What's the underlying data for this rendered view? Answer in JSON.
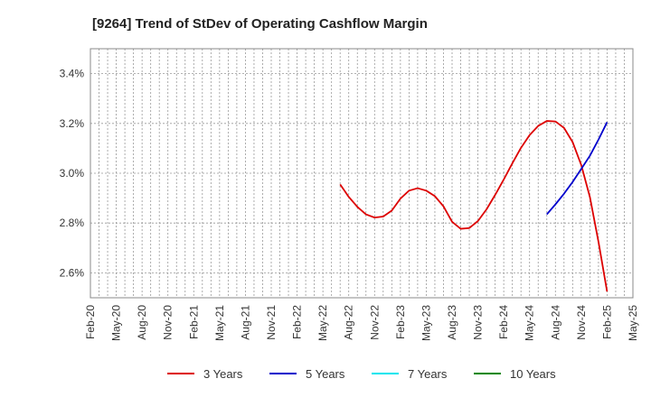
{
  "chart_data": {
    "type": "line",
    "title": "[9264]  Trend of StDev of Operating Cashflow Margin",
    "xlabel": "",
    "ylabel": "",
    "ylim": [
      2.5,
      3.5
    ],
    "yticks": [
      2.6,
      2.8,
      3.0,
      3.2,
      3.4
    ],
    "ytick_labels": [
      "2.6%",
      "2.8%",
      "3.0%",
      "3.2%",
      "3.4%"
    ],
    "x_labels": [
      "Feb-20",
      "May-20",
      "Aug-20",
      "Nov-20",
      "Feb-21",
      "May-21",
      "Aug-21",
      "Nov-21",
      "Feb-22",
      "May-22",
      "Aug-22",
      "Nov-22",
      "Feb-23",
      "May-23",
      "Aug-23",
      "Nov-23",
      "Feb-24",
      "May-24",
      "Aug-24",
      "Nov-24",
      "Feb-25",
      "May-25"
    ],
    "grid": true,
    "legend_position": "bottom",
    "series": [
      {
        "name": "3 Years",
        "color": "#dd0000",
        "points": [
          [
            "Jul-22",
            2.955
          ],
          [
            "Aug-22",
            2.905
          ],
          [
            "Sep-22",
            2.865
          ],
          [
            "Oct-22",
            2.835
          ],
          [
            "Nov-22",
            2.822
          ],
          [
            "Dec-22",
            2.826
          ],
          [
            "Jan-23",
            2.85
          ],
          [
            "Feb-23",
            2.898
          ],
          [
            "Mar-23",
            2.93
          ],
          [
            "Apr-23",
            2.94
          ],
          [
            "May-23",
            2.93
          ],
          [
            "Jun-23",
            2.908
          ],
          [
            "Jul-23",
            2.867
          ],
          [
            "Aug-23",
            2.805
          ],
          [
            "Sep-23",
            2.777
          ],
          [
            "Oct-23",
            2.78
          ],
          [
            "Nov-23",
            2.808
          ],
          [
            "Dec-23",
            2.855
          ],
          [
            "Jan-24",
            2.913
          ],
          [
            "Feb-24",
            2.975
          ],
          [
            "Mar-24",
            3.04
          ],
          [
            "Apr-24",
            3.102
          ],
          [
            "May-24",
            3.153
          ],
          [
            "Jun-24",
            3.19
          ],
          [
            "Jul-24",
            3.21
          ],
          [
            "Aug-24",
            3.208
          ],
          [
            "Sep-24",
            3.182
          ],
          [
            "Oct-24",
            3.125
          ],
          [
            "Nov-24",
            3.033
          ],
          [
            "Dec-24",
            2.905
          ],
          [
            "Jan-25",
            2.725
          ],
          [
            "Feb-25",
            2.525
          ]
        ]
      },
      {
        "name": "5 Years",
        "color": "#0000cc",
        "points": [
          [
            "Jul-24",
            2.835
          ],
          [
            "Aug-24",
            2.875
          ],
          [
            "Sep-24",
            2.918
          ],
          [
            "Oct-24",
            2.965
          ],
          [
            "Nov-24",
            3.017
          ],
          [
            "Dec-24",
            3.07
          ],
          [
            "Jan-25",
            3.135
          ],
          [
            "Feb-25",
            3.205
          ]
        ]
      },
      {
        "name": "7 Years",
        "color": "#00e5ee",
        "points": []
      },
      {
        "name": "10 Years",
        "color": "#008800",
        "points": []
      }
    ]
  }
}
